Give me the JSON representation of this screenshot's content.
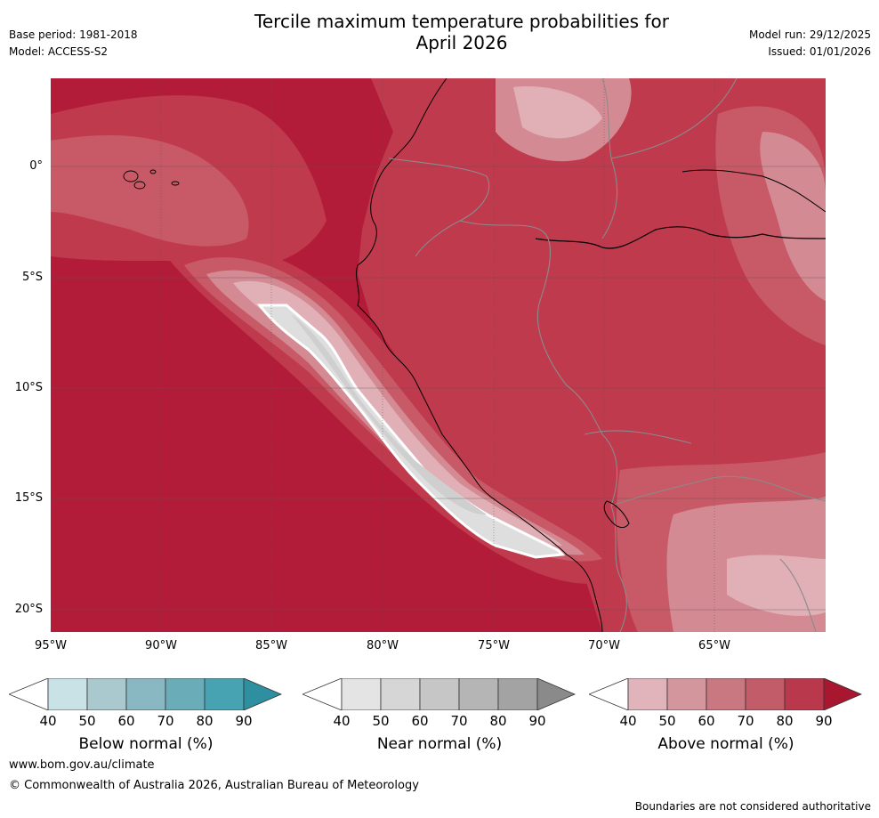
{
  "header": {
    "title_line1": "Tercile maximum temperature probabilities for",
    "title_line2": "April 2026",
    "base_period": "Base period: 1981-2018",
    "model": "Model: ACCESS-S2",
    "model_run": "Model run: 29/12/2025",
    "issued": "Issued: 01/01/2026"
  },
  "map": {
    "lat_labels": [
      "0°",
      "5°S",
      "10°S",
      "15°S",
      "20°S"
    ],
    "lon_labels": [
      "95°W",
      "90°W",
      "85°W",
      "80°W",
      "75°W",
      "70°W",
      "65°W"
    ],
    "colors": {
      "above_max": "#b31c38",
      "above_80": "#c03a4e",
      "above_70": "#c85a68",
      "above_60": "#d48a93",
      "above_50": "#e0b0b6",
      "near_50": "#dedede",
      "near_40": "#eeeeee",
      "border": "#8a8a8a",
      "coast": "#000000",
      "grid": "#555555"
    }
  },
  "colorbars": [
    {
      "id": "below",
      "title": "Below normal (%)",
      "ticks": [
        "40",
        "50",
        "60",
        "70",
        "80",
        "90"
      ],
      "colors": [
        "#c9e2e6",
        "#a9c9ce",
        "#8ab8c2",
        "#6aacb8",
        "#47a2b2",
        "#2e8fa0"
      ]
    },
    {
      "id": "near",
      "title": "Near normal (%)",
      "ticks": [
        "40",
        "50",
        "60",
        "70",
        "80",
        "90"
      ],
      "colors": [
        "#e4e4e4",
        "#d6d6d6",
        "#c6c6c6",
        "#b5b5b5",
        "#a3a3a3",
        "#8a8a8a"
      ]
    },
    {
      "id": "above",
      "title": "Above normal (%)",
      "ticks": [
        "40",
        "50",
        "60",
        "70",
        "80",
        "90"
      ],
      "colors": [
        "#e0b4ba",
        "#d4969d",
        "#c97881",
        "#c25c68",
        "#b9384b",
        "#a8172f"
      ]
    }
  ],
  "footer": {
    "website": "www.bom.gov.au/climate",
    "copyright": "© Commonwealth of Australia 2026, Australian Bureau of Meteorology",
    "disclaimer": "Boundaries are not considered authoritative"
  }
}
